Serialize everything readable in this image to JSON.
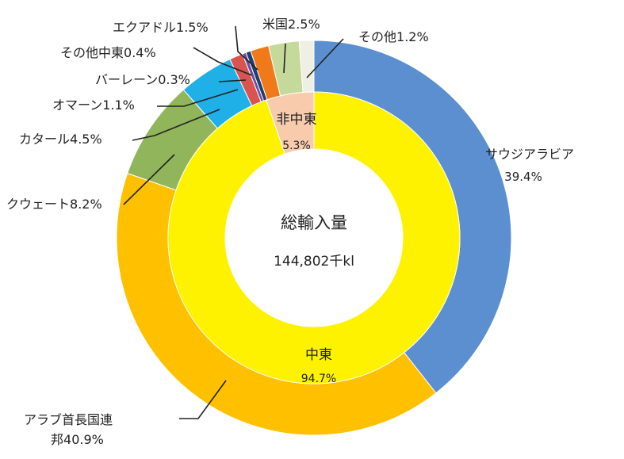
{
  "chart_data": {
    "type": "pie",
    "subtype": "nested-donut",
    "center": {
      "title": "総輸入量",
      "value": "144,802千kl"
    },
    "outer_ring": {
      "slices": [
        {
          "label": "サウジアラビア",
          "value": 39.4,
          "value_text": "39.4%",
          "color": "#5b8fd0"
        },
        {
          "label": "アラブ首長国連邦",
          "value": 40.9,
          "value_text": "40.9%",
          "color": "#ffc000"
        },
        {
          "label": "クウェート",
          "value": 8.2,
          "value_text": "8.2%",
          "color": "#91b55b"
        },
        {
          "label": "カタール",
          "value": 4.5,
          "value_text": "4.5%",
          "color": "#1fb0e8"
        },
        {
          "label": "オマーン",
          "value": 1.1,
          "value_text": "1.1%",
          "color": "#d9534f"
        },
        {
          "label": "バーレーン",
          "value": 0.3,
          "value_text": "0.3%",
          "color": "#6b4ea0"
        },
        {
          "label": "その他中東",
          "value": 0.4,
          "value_text": "0.4%",
          "color": "#1f3f73"
        },
        {
          "label": "エクアドル",
          "value": 1.5,
          "value_text": "1.5%",
          "color": "#f07a1a"
        },
        {
          "label": "米国",
          "value": 2.5,
          "value_text": "2.5%",
          "color": "#c5d99a"
        },
        {
          "label": "その他",
          "value": 1.2,
          "value_text": "1.2%",
          "color": "#efefe4"
        }
      ]
    },
    "inner_ring": {
      "slices": [
        {
          "label": "中東",
          "value": 94.7,
          "value_text": "94.7%",
          "color": "#fff200"
        },
        {
          "label": "非中東",
          "value": 5.3,
          "value_text": "5.3%",
          "color": "#f8cbad"
        }
      ]
    }
  }
}
